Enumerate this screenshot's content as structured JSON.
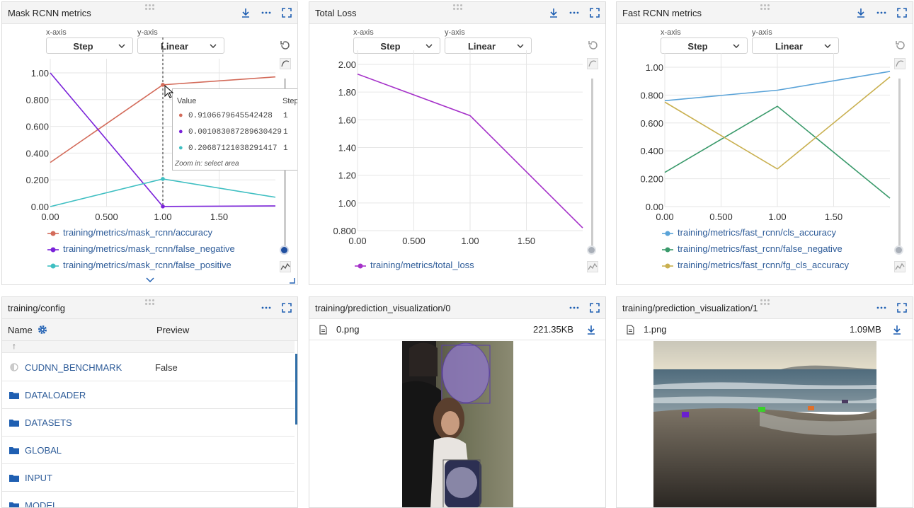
{
  "panels": {
    "mask": {
      "title": "Mask RCNN metrics",
      "xaxis_label": "x-axis",
      "yaxis_label": "y-axis",
      "xaxis_value": "Step",
      "yaxis_value": "Linear",
      "legend": [
        {
          "name": "training/metrics/mask_rcnn/accuracy",
          "color": "#d36b5a"
        },
        {
          "name": "training/metrics/mask_rcnn/false_negative",
          "color": "#7a22d9"
        },
        {
          "name": "training/metrics/mask_rcnn/false_positive",
          "color": "#3fbfc2"
        }
      ],
      "tooltip": {
        "value_header": "Value",
        "step_header": "Step",
        "rows": [
          {
            "value": "0.9106679645542428",
            "step": "1"
          },
          {
            "value": "0.001083087289630429",
            "step": "1"
          },
          {
            "value": "0.20687121038291417",
            "step": "1"
          }
        ],
        "hint": "Zoom in: select area"
      }
    },
    "loss": {
      "title": "Total Loss",
      "xaxis_label": "x-axis",
      "yaxis_label": "y-axis",
      "xaxis_value": "Step",
      "yaxis_value": "Linear",
      "legend": [
        {
          "name": "training/metrics/total_loss",
          "color": "#a531c9"
        }
      ]
    },
    "fast": {
      "title": "Fast RCNN metrics",
      "xaxis_label": "x-axis",
      "yaxis_label": "y-axis",
      "xaxis_value": "Step",
      "yaxis_value": "Linear",
      "legend": [
        {
          "name": "training/metrics/fast_rcnn/cls_accuracy",
          "color": "#5aa3d8"
        },
        {
          "name": "training/metrics/fast_rcnn/false_negative",
          "color": "#3a9a6b"
        },
        {
          "name": "training/metrics/fast_rcnn/fg_cls_accuracy",
          "color": "#c9b050"
        }
      ]
    },
    "config": {
      "title": "training/config",
      "name_header": "Name",
      "preview_header": "Preview",
      "up_glyph": "↑",
      "rows": [
        {
          "name": "CUDNN_BENCHMARK",
          "preview": "False",
          "kind": "value"
        },
        {
          "name": "DATALOADER",
          "preview": "",
          "kind": "folder"
        },
        {
          "name": "DATASETS",
          "preview": "",
          "kind": "folder"
        },
        {
          "name": "GLOBAL",
          "preview": "",
          "kind": "folder"
        },
        {
          "name": "INPUT",
          "preview": "",
          "kind": "folder"
        },
        {
          "name": "MODEL",
          "preview": "",
          "kind": "folder"
        }
      ]
    },
    "viz0": {
      "title": "training/prediction_visualization/0",
      "file": "0.png",
      "size": "221.35KB"
    },
    "viz1": {
      "title": "training/prediction_visualization/1",
      "file": "1.png",
      "size": "1.09MB"
    }
  },
  "chart_data": [
    {
      "type": "line",
      "title": "Mask RCNN metrics",
      "x_ticks": [
        "0.00",
        "0.500",
        "1.00",
        "1.50"
      ],
      "y_ticks": [
        "0.00",
        "0.200",
        "0.400",
        "0.600",
        "0.800",
        "1.00"
      ],
      "xlim": [
        0,
        2
      ],
      "ylim": [
        0,
        1.0
      ],
      "series": [
        {
          "name": "training/metrics/mask_rcnn/accuracy",
          "color": "#d36b5a",
          "x": [
            0,
            1,
            2
          ],
          "y": [
            0.33,
            0.9107,
            0.97
          ]
        },
        {
          "name": "training/metrics/mask_rcnn/false_negative",
          "color": "#7a22d9",
          "x": [
            0,
            1,
            2
          ],
          "y": [
            1.0,
            0.0011,
            0.005
          ]
        },
        {
          "name": "training/metrics/mask_rcnn/false_positive",
          "color": "#3fbfc2",
          "x": [
            0,
            1,
            2
          ],
          "y": [
            0.0,
            0.2069,
            0.07
          ]
        }
      ],
      "grid": true
    },
    {
      "type": "line",
      "title": "Total Loss",
      "x_ticks": [
        "0.00",
        "0.500",
        "1.00",
        "1.50"
      ],
      "y_ticks": [
        "0.800",
        "1.00",
        "1.20",
        "1.40",
        "1.60",
        "1.80",
        "2.00"
      ],
      "xlim": [
        0,
        2
      ],
      "ylim": [
        0.8,
        2.0
      ],
      "series": [
        {
          "name": "training/metrics/total_loss",
          "color": "#a531c9",
          "x": [
            0,
            1,
            2
          ],
          "y": [
            1.93,
            1.63,
            0.82
          ]
        }
      ],
      "grid": true
    },
    {
      "type": "line",
      "title": "Fast RCNN metrics",
      "x_ticks": [
        "0.00",
        "0.500",
        "1.00",
        "1.50"
      ],
      "y_ticks": [
        "0.00",
        "0.200",
        "0.400",
        "0.600",
        "0.800",
        "1.00"
      ],
      "xlim": [
        0,
        2
      ],
      "ylim": [
        0,
        1.0
      ],
      "series": [
        {
          "name": "training/metrics/fast_rcnn/cls_accuracy",
          "color": "#5aa3d8",
          "x": [
            0,
            1,
            2
          ],
          "y": [
            0.76,
            0.835,
            0.97
          ]
        },
        {
          "name": "training/metrics/fast_rcnn/false_negative",
          "color": "#3a9a6b",
          "x": [
            0,
            1,
            2
          ],
          "y": [
            0.245,
            0.72,
            0.06
          ]
        },
        {
          "name": "training/metrics/fast_rcnn/fg_cls_accuracy",
          "color": "#c9b050",
          "x": [
            0,
            1,
            2
          ],
          "y": [
            0.75,
            0.27,
            0.93
          ]
        }
      ],
      "grid": true
    }
  ]
}
